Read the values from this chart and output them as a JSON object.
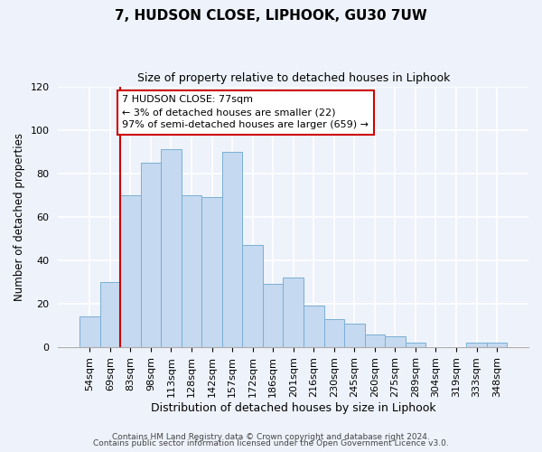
{
  "title": "7, HUDSON CLOSE, LIPHOOK, GU30 7UW",
  "subtitle": "Size of property relative to detached houses in Liphook",
  "xlabel": "Distribution of detached houses by size in Liphook",
  "ylabel": "Number of detached properties",
  "categories": [
    "54sqm",
    "69sqm",
    "83sqm",
    "98sqm",
    "113sqm",
    "128sqm",
    "142sqm",
    "157sqm",
    "172sqm",
    "186sqm",
    "201sqm",
    "216sqm",
    "230sqm",
    "245sqm",
    "260sqm",
    "275sqm",
    "289sqm",
    "304sqm",
    "319sqm",
    "333sqm",
    "348sqm"
  ],
  "values": [
    14,
    30,
    70,
    85,
    91,
    70,
    69,
    90,
    47,
    29,
    32,
    19,
    13,
    11,
    6,
    5,
    2,
    0,
    0,
    2,
    2
  ],
  "bar_color": "#c5d9f0",
  "bar_edge_color": "#7aafd4",
  "vline_color": "#cc0000",
  "vline_x_idx": 2,
  "annotation_line1": "7 HUDSON CLOSE: 77sqm",
  "annotation_line2": "← 3% of detached houses are smaller (22)",
  "annotation_line3": "97% of semi-detached houses are larger (659) →",
  "annotation_box_color": "#ffffff",
  "annotation_box_edge_color": "#cc0000",
  "ylim": [
    0,
    120
  ],
  "yticks": [
    0,
    20,
    40,
    60,
    80,
    100,
    120
  ],
  "footer1": "Contains HM Land Registry data © Crown copyright and database right 2024.",
  "footer2": "Contains public sector information licensed under the Open Government Licence v3.0.",
  "bg_color": "#eef2fa",
  "plot_bg_color": "#eef2fa",
  "grid_color": "#ffffff",
  "title_fontsize": 11,
  "subtitle_fontsize": 9,
  "ylabel_fontsize": 8.5,
  "xlabel_fontsize": 9,
  "tick_fontsize": 8,
  "footer_fontsize": 6.5
}
